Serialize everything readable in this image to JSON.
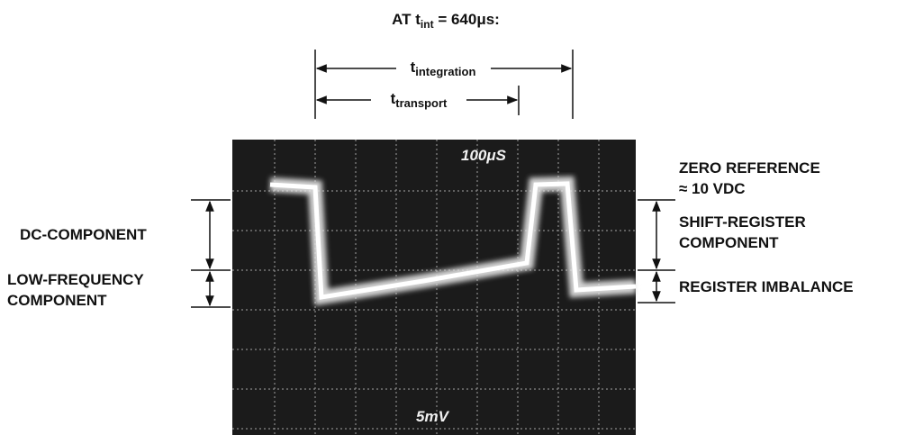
{
  "title": {
    "prefix": "AT t",
    "subscript": "int",
    "suffix": "  =  640μs:"
  },
  "intervals": {
    "integration": {
      "symbol": "t",
      "subscript": "integration"
    },
    "transport": {
      "symbol": "t",
      "subscript": "transport"
    }
  },
  "scope": {
    "timebase": "100μS",
    "sensitivity": "5mV"
  },
  "left_labels": {
    "dc": "DC-COMPONENT",
    "low_frequency": [
      "LOW-FREQUENCY",
      "COMPONENT"
    ]
  },
  "right_labels": {
    "zero_reference": [
      "ZERO REFERENCE",
      "≈ 10 VDC"
    ],
    "shift_register": [
      "SHIFT-REGISTER",
      "COMPONENT"
    ],
    "imbalance": "REGISTER IMBALANCE"
  }
}
